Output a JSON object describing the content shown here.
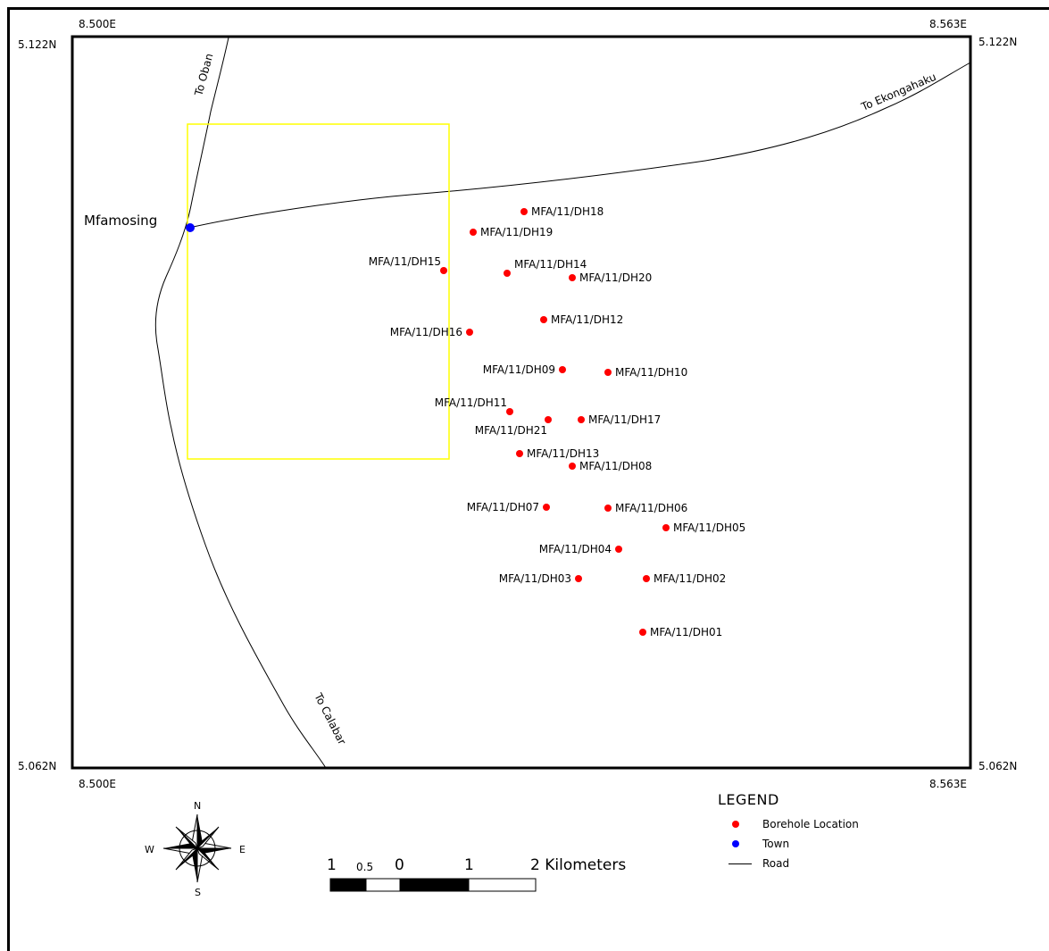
{
  "coordinates": {
    "lon_left_top": "8.500E",
    "lon_right_top": "8.563E",
    "lon_left_bottom": "8.500E",
    "lon_right_bottom": "8.563E",
    "lat_top_left": "5.122N",
    "lat_top_right": "5.122N",
    "lat_bottom_left": "5.062N",
    "lat_bottom_right": "5.062N"
  },
  "roads": {
    "to_oban": "To Oban",
    "to_ekongahaku": "To Ekongahaku",
    "to_calabar": "To Calabar"
  },
  "town": {
    "name": "Mfamosing",
    "color": "#0000ff"
  },
  "boreholes": {
    "color": "#ff0000",
    "items": [
      {
        "id": "MFA/11/DH18"
      },
      {
        "id": "MFA/11/DH19"
      },
      {
        "id": "MFA/11/DH15"
      },
      {
        "id": "MFA/11/DH14"
      },
      {
        "id": "MFA/11/DH20"
      },
      {
        "id": "MFA/11/DH12"
      },
      {
        "id": "MFA/11/DH16"
      },
      {
        "id": "MFA/11/DH09"
      },
      {
        "id": "MFA/11/DH10"
      },
      {
        "id": "MFA/11/DH11"
      },
      {
        "id": "MFA/11/DH21"
      },
      {
        "id": "MFA/11/DH17"
      },
      {
        "id": "MFA/11/DH13"
      },
      {
        "id": "MFA/11/DH08"
      },
      {
        "id": "MFA/11/DH07"
      },
      {
        "id": "MFA/11/DH06"
      },
      {
        "id": "MFA/11/DH05"
      },
      {
        "id": "MFA/11/DH04"
      },
      {
        "id": "MFA/11/DH03"
      },
      {
        "id": "MFA/11/DH02"
      },
      {
        "id": "MFA/11/DH01"
      }
    ]
  },
  "study_area_color": "#ffff00",
  "legend": {
    "title": "LEGEND",
    "borehole": "Borehole Location",
    "town": "Town",
    "road": "Road"
  },
  "compass": {
    "n": "N",
    "s": "S",
    "e": "E",
    "w": "W"
  },
  "scale_bar": {
    "l1": "1",
    "l05": "0.5",
    "l0": "0",
    "l1b": "1",
    "l2": "2 Kilometers"
  }
}
